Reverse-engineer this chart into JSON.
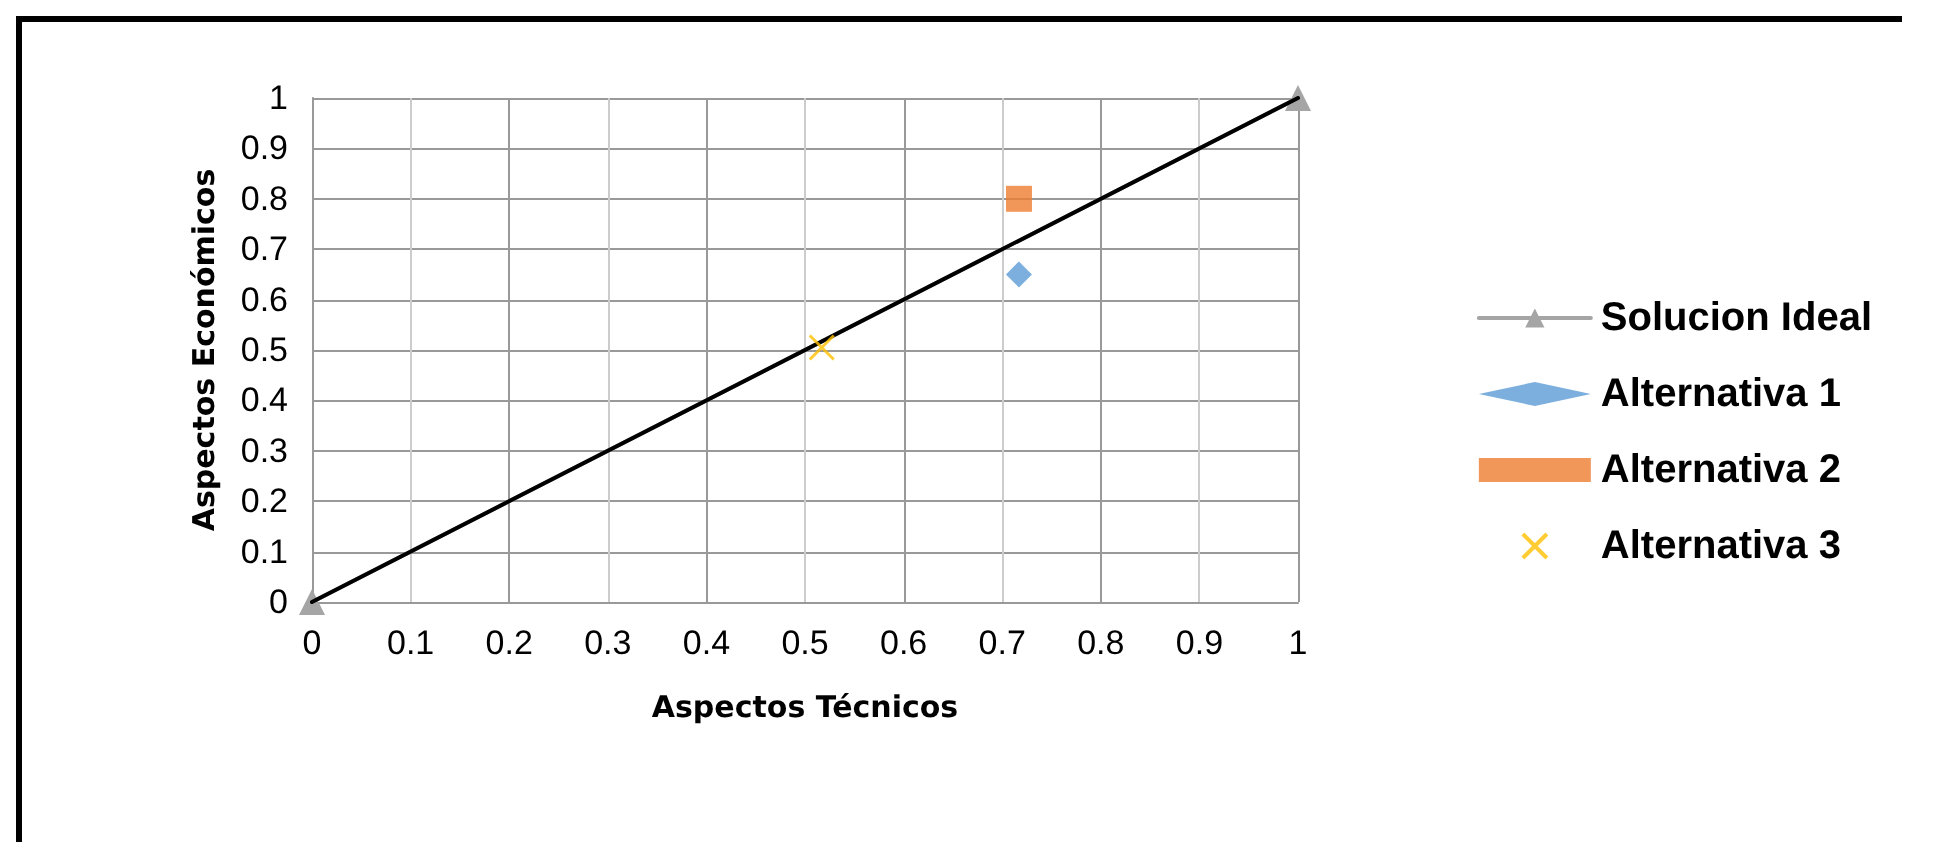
{
  "chart_data": {
    "type": "scatter",
    "xlabel": "Aspectos Técnicos",
    "ylabel": "Aspectos Económicos",
    "xlim": [
      0,
      1
    ],
    "ylim": [
      0,
      1
    ],
    "xticks": [
      0,
      0.1,
      0.2,
      0.3,
      0.4,
      0.5,
      0.6,
      0.7,
      0.8,
      0.9,
      1
    ],
    "yticks": [
      0,
      0.1,
      0.2,
      0.3,
      0.4,
      0.5,
      0.6,
      0.7,
      0.8,
      0.9,
      1
    ],
    "grid": true,
    "legend": "right",
    "series": [
      {
        "name": "Solucion Ideal",
        "type": "line",
        "color": "#a5a5a5",
        "marker": "triangle",
        "x": [
          0,
          1
        ],
        "values": [
          0,
          1
        ]
      },
      {
        "name": "Alternativa 1",
        "color": "#5b9bd5",
        "marker": "diamond",
        "x": [
          0.717
        ],
        "values": [
          0.65
        ]
      },
      {
        "name": "Alternativa 2",
        "color": "#ed7d31",
        "marker": "square",
        "x": [
          0.717
        ],
        "values": [
          0.8
        ]
      },
      {
        "name": "Alternativa 3",
        "color": "#ffc000",
        "marker": "cross",
        "x": [
          0.517
        ],
        "values": [
          0.505
        ]
      },
      {
        "type": "line",
        "color": "#000000",
        "marker": "none",
        "x": [
          0,
          1
        ],
        "values": [
          0,
          1
        ]
      }
    ]
  }
}
